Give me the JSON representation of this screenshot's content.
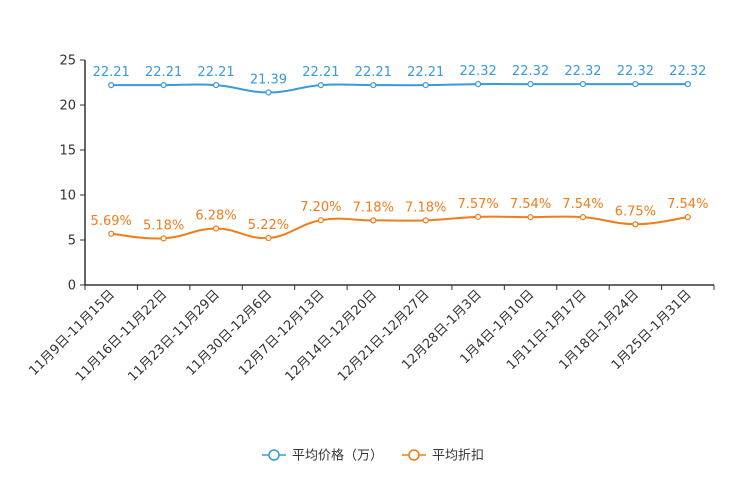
{
  "chart_data": {
    "type": "line",
    "categories": [
      "11月9日-11月15日",
      "11月16日-11月22日",
      "11月23日-11月29日",
      "11月30日-12月6日",
      "12月7日-12月13日",
      "12月14日-12月20日",
      "12月21日-12月27日",
      "12月28日-1月3日",
      "1月4日-1月10日",
      "1月11日-1月17日",
      "1月18日-1月24日",
      "1月25日-1月31日"
    ],
    "ylim": [
      0,
      25
    ],
    "yticks": [
      0,
      5,
      10,
      15,
      20,
      25
    ],
    "series": [
      {
        "name": "平均价格（万）",
        "values": [
          22.21,
          22.21,
          22.21,
          21.39,
          22.21,
          22.21,
          22.21,
          22.32,
          22.32,
          22.32,
          22.32,
          22.32
        ],
        "labels": [
          "22.21",
          "22.21",
          "22.21",
          "21.39",
          "22.21",
          "22.21",
          "22.21",
          "22.32",
          "22.32",
          "22.32",
          "22.32",
          "22.32"
        ],
        "color": "#3a9ad9"
      },
      {
        "name": "平均折扣",
        "values": [
          5.69,
          5.18,
          6.28,
          5.22,
          7.2,
          7.18,
          7.18,
          7.57,
          7.54,
          7.54,
          6.75,
          7.54
        ],
        "labels": [
          "5.69%",
          "5.18%",
          "6.28%",
          "5.22%",
          "7.20%",
          "7.18%",
          "7.18%",
          "7.57%",
          "7.54%",
          "7.54%",
          "6.75%",
          "7.54%"
        ],
        "color": "#f07c1a"
      }
    ],
    "legend": "bottom-center",
    "grid": false
  }
}
